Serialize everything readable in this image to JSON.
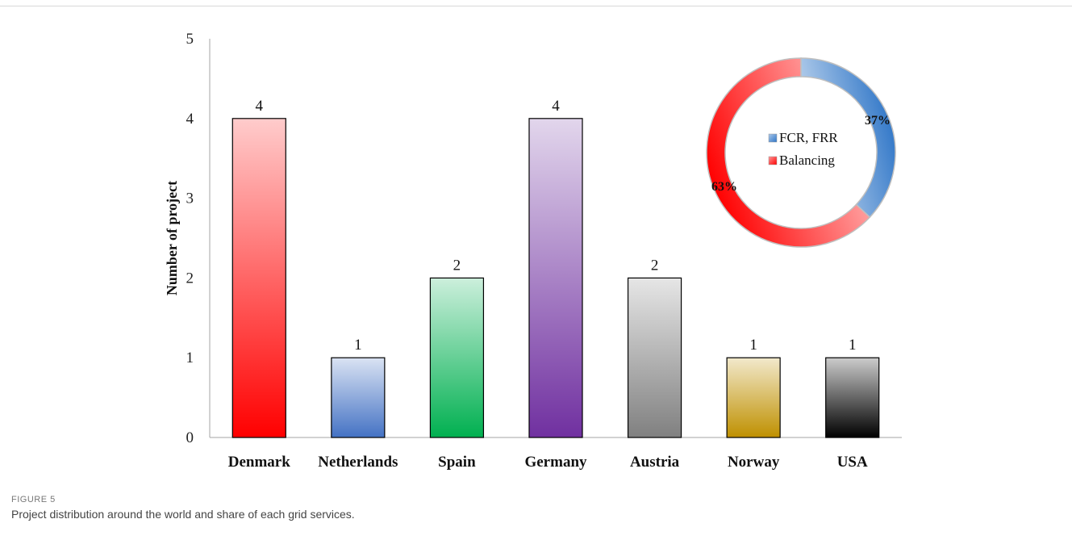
{
  "chart_data": [
    {
      "type": "bar",
      "categories": [
        "Denmark",
        "Netherlands",
        "Spain",
        "Germany",
        "Austria",
        "Norway",
        "USA"
      ],
      "values": [
        4,
        1,
        2,
        4,
        2,
        1,
        1
      ],
      "data_labels": [
        "4",
        "1",
        "2",
        "4",
        "2",
        "1",
        "1"
      ],
      "ylabel": "Number of project",
      "ylim": [
        0,
        5
      ],
      "yticks": [
        0,
        1,
        2,
        3,
        4,
        5
      ],
      "grid": false,
      "bar_colors": [
        "#ff0000",
        "#4472c4",
        "#00b050",
        "#7030a0",
        "#808080",
        "#bf9000",
        "#000000"
      ]
    },
    {
      "type": "pie",
      "donut": true,
      "labels": [
        "FCR, FRR",
        "Balancing"
      ],
      "values": [
        37,
        63
      ],
      "value_labels": [
        "37%",
        "63%"
      ],
      "colors": [
        "#2e75c7",
        "#ff0000"
      ],
      "legend": "center"
    }
  ],
  "caption": {
    "label": "FIGURE 5",
    "text": "Project distribution around the world and share of each grid services."
  }
}
